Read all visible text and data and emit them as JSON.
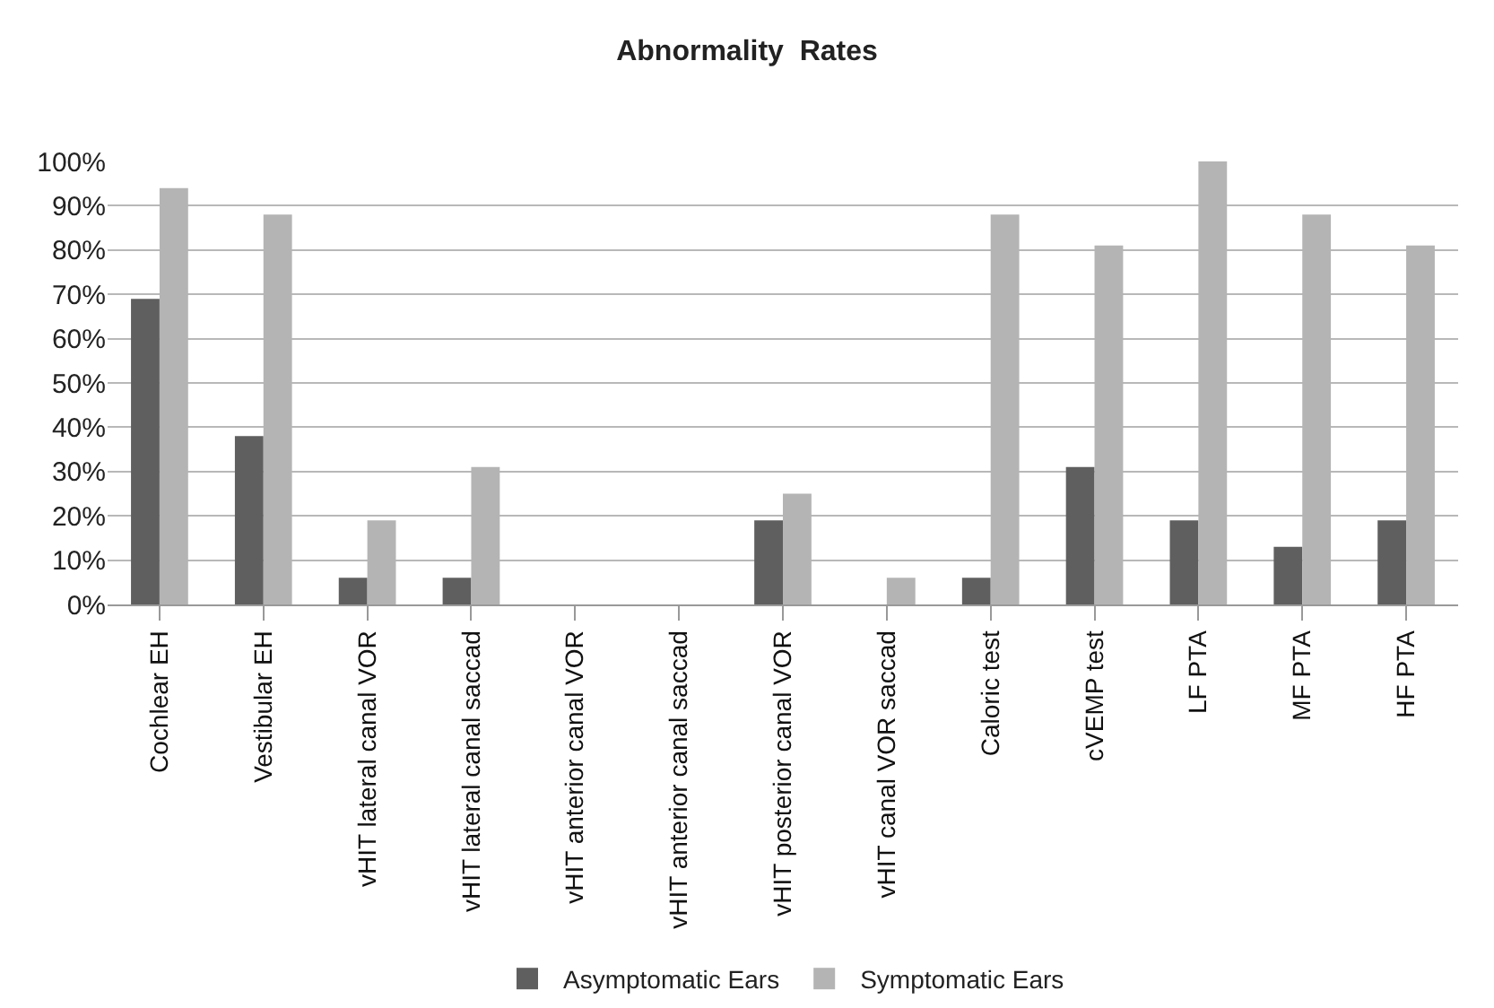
{
  "chart_data": {
    "type": "bar",
    "title": "Abnormality  Rates",
    "categories": [
      "Cochlear EH",
      "Vestibular EH",
      "vHIT lateral canal VOR",
      "vHIT lateral canal saccad",
      "vHIT anterior canal VOR",
      "vHIT anterior canal saccad",
      "vHIT posterior canal VOR",
      "vHIT canal VOR saccad",
      "Caloric test",
      "cVEMP test",
      "LF PTA",
      "MF PTA",
      "HF PTA"
    ],
    "series": [
      {
        "name": "Asymptomatic Ears",
        "color": "#5f5f5f",
        "values": [
          69,
          38,
          6,
          6,
          0,
          0,
          19,
          0,
          6,
          31,
          19,
          13,
          19
        ]
      },
      {
        "name": "Symptomatic Ears",
        "color": "#b4b4b4",
        "values": [
          94,
          88,
          19,
          31,
          0,
          0,
          25,
          6,
          88,
          81,
          100,
          88,
          81
        ]
      }
    ],
    "ylim": [
      0,
      100
    ],
    "yticks": [
      {
        "value": 0,
        "label": "0%"
      },
      {
        "value": 10,
        "label": "10%"
      },
      {
        "value": 20,
        "label": "20%"
      },
      {
        "value": 30,
        "label": "30%"
      },
      {
        "value": 40,
        "label": "40%"
      },
      {
        "value": 50,
        "label": "50%"
      },
      {
        "value": 60,
        "label": "60%"
      },
      {
        "value": 70,
        "label": "70%"
      },
      {
        "value": 80,
        "label": "80%"
      },
      {
        "value": 90,
        "label": "90%"
      },
      {
        "value": 100,
        "label": "100%"
      }
    ],
    "grid": "y",
    "legend": "bottom"
  }
}
